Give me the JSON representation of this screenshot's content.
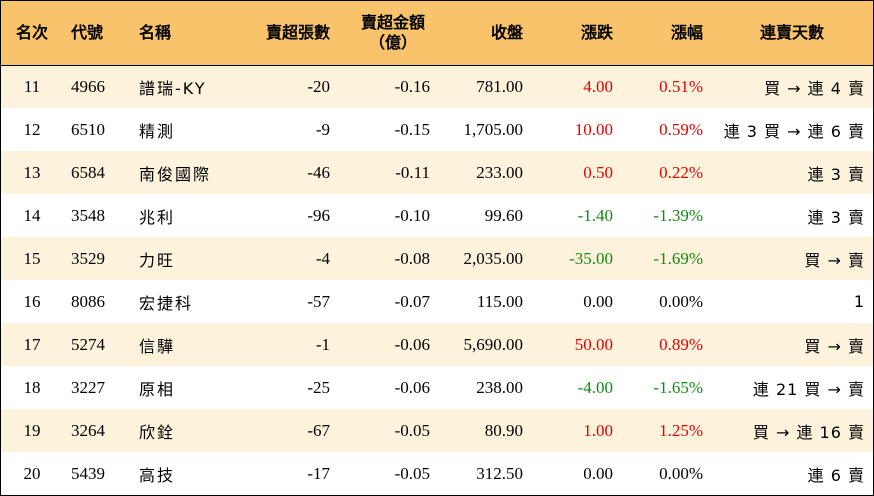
{
  "headers": {
    "rank": "名次",
    "code": "代號",
    "name": "名稱",
    "sell_lots": "賣超張數",
    "sell_amount_line1": "賣超金額",
    "sell_amount_line2": "（億）",
    "close": "收盤",
    "change": "漲跌",
    "change_pct": "漲幅",
    "streak": "連賣天數"
  },
  "colors": {
    "header_bg": "#f8c36a",
    "stripe_bg": "#fdf3dc",
    "up": "#e60000",
    "down": "#138a13"
  },
  "rows": [
    {
      "rank": "11",
      "code": "4966",
      "name": "譜瑞-KY",
      "sell_lots": "-20",
      "sell_amount": "-0.16",
      "close": "781.00",
      "change": "4.00",
      "change_pct": "0.51%",
      "direction": "up",
      "streak": "買 → 連 4 賣"
    },
    {
      "rank": "12",
      "code": "6510",
      "name": "精測",
      "sell_lots": "-9",
      "sell_amount": "-0.15",
      "close": "1,705.00",
      "change": "10.00",
      "change_pct": "0.59%",
      "direction": "up",
      "streak": "連 3 買 → 連 6 賣"
    },
    {
      "rank": "13",
      "code": "6584",
      "name": "南俊國際",
      "sell_lots": "-46",
      "sell_amount": "-0.11",
      "close": "233.00",
      "change": "0.50",
      "change_pct": "0.22%",
      "direction": "up",
      "streak": "連 3 賣"
    },
    {
      "rank": "14",
      "code": "3548",
      "name": "兆利",
      "sell_lots": "-96",
      "sell_amount": "-0.10",
      "close": "99.60",
      "change": "-1.40",
      "change_pct": "-1.39%",
      "direction": "down",
      "streak": "連 3 賣"
    },
    {
      "rank": "15",
      "code": "3529",
      "name": "力旺",
      "sell_lots": "-4",
      "sell_amount": "-0.08",
      "close": "2,035.00",
      "change": "-35.00",
      "change_pct": "-1.69%",
      "direction": "down",
      "streak": "買 → 賣"
    },
    {
      "rank": "16",
      "code": "8086",
      "name": "宏捷科",
      "sell_lots": "-57",
      "sell_amount": "-0.07",
      "close": "115.00",
      "change": "0.00",
      "change_pct": "0.00%",
      "direction": "flat",
      "streak": "1"
    },
    {
      "rank": "17",
      "code": "5274",
      "name": "信驊",
      "sell_lots": "-1",
      "sell_amount": "-0.06",
      "close": "5,690.00",
      "change": "50.00",
      "change_pct": "0.89%",
      "direction": "up",
      "streak": "買 → 賣"
    },
    {
      "rank": "18",
      "code": "3227",
      "name": "原相",
      "sell_lots": "-25",
      "sell_amount": "-0.06",
      "close": "238.00",
      "change": "-4.00",
      "change_pct": "-1.65%",
      "direction": "down",
      "streak": "連 21 買 → 賣"
    },
    {
      "rank": "19",
      "code": "3264",
      "name": "欣銓",
      "sell_lots": "-67",
      "sell_amount": "-0.05",
      "close": "80.90",
      "change": "1.00",
      "change_pct": "1.25%",
      "direction": "up",
      "streak": "買 → 連 16 賣"
    },
    {
      "rank": "20",
      "code": "5439",
      "name": "高技",
      "sell_lots": "-17",
      "sell_amount": "-0.05",
      "close": "312.50",
      "change": "0.00",
      "change_pct": "0.00%",
      "direction": "flat",
      "streak": "連 6 賣"
    }
  ]
}
